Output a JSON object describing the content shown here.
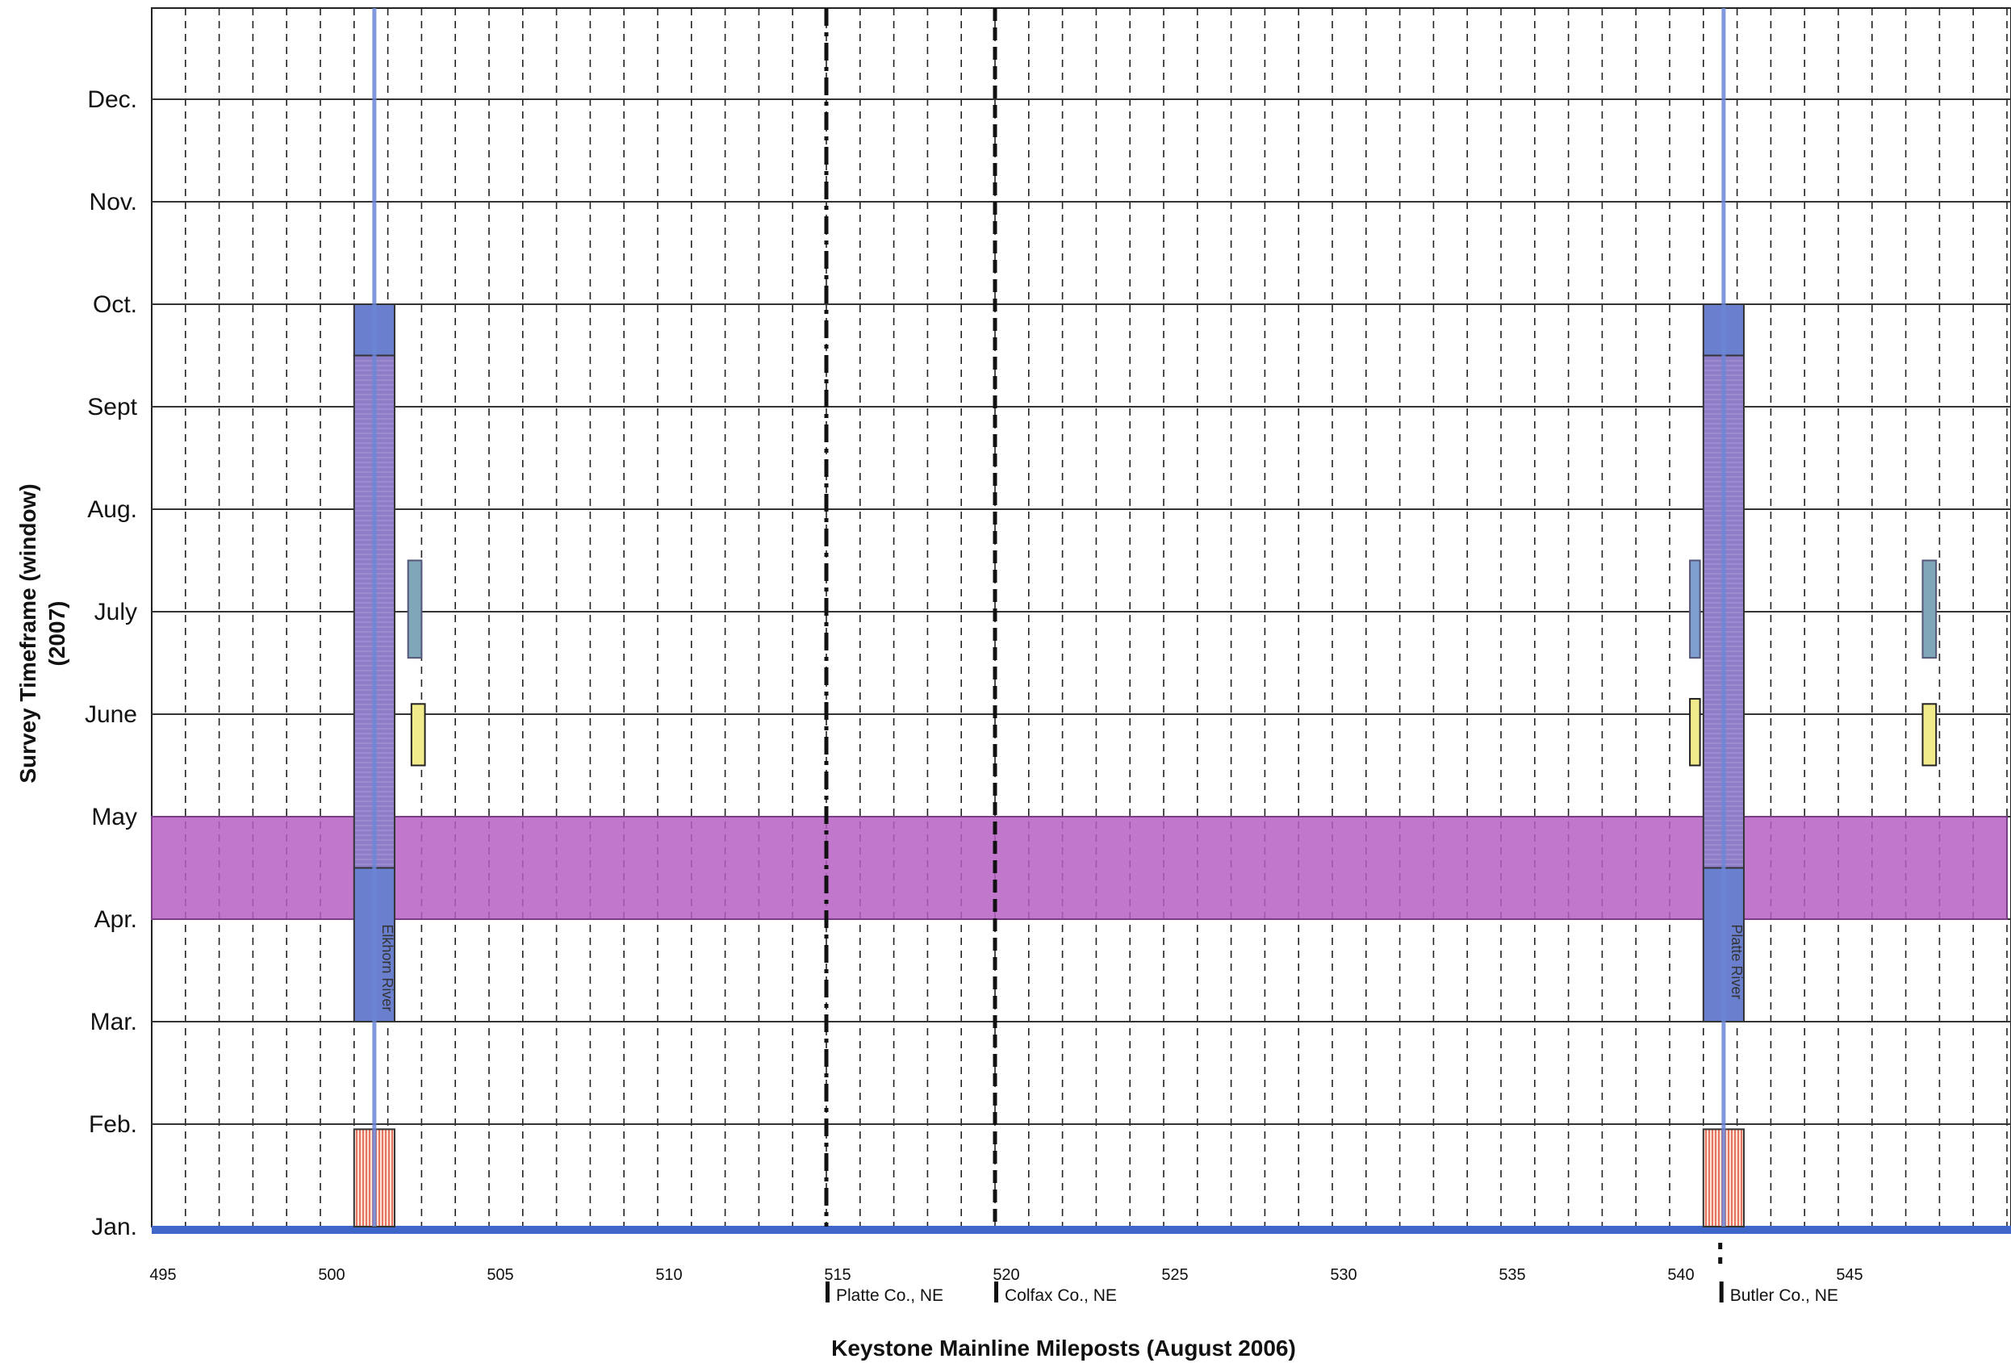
{
  "chart_data": {
    "type": "gantt",
    "ylabel": "Survey Timeframe (window)",
    "ylabel2": "(2007)",
    "xlabel": "Keystone Mainline Mileposts (August 2006)",
    "x_range": [
      495,
      550
    ],
    "x_ticks": [
      495,
      500,
      505,
      510,
      515,
      520,
      525,
      530,
      535,
      540,
      545
    ],
    "x_tick_labels": [
      "495",
      "500",
      "505",
      "510",
      "515",
      "520",
      "525",
      "530",
      "535",
      "540",
      "545"
    ],
    "months": [
      "Jan.",
      "Feb.",
      "Mar.",
      "Apr.",
      "May",
      "June",
      "July",
      "Aug.",
      "Sept",
      "Oct.",
      "Nov.",
      "Dec."
    ],
    "y_range_month": [
      1,
      12.9
    ],
    "minor_grid_step_mile": 1,
    "county_lines": [
      {
        "mile": 515,
        "label": "Platte Co., NE",
        "style": "dash-dot"
      },
      {
        "mile": 520,
        "label": "Colfax Co., NE",
        "style": "dash"
      },
      {
        "mile": 541.5,
        "label": "Butler Co., NE",
        "style": "dash"
      }
    ],
    "rivers": [
      {
        "mile": 501.6,
        "label": "Elkhorn River",
        "color": "#6b86d6"
      },
      {
        "mile": 541.6,
        "label": "Platte River",
        "color": "#6b86d6"
      }
    ],
    "bars": [
      {
        "x0": 495,
        "x1": 550,
        "y0": 4.0,
        "y1": 5.0,
        "fill": "#b65fc2",
        "stroke": "#7a3d88"
      },
      {
        "x0": 501.0,
        "x1": 502.2,
        "y0": 3.0,
        "y1": 4.5,
        "fill": "#6a80cf",
        "stroke": "#333"
      },
      {
        "x0": 501.0,
        "x1": 502.2,
        "y0": 4.5,
        "y1": 9.5,
        "fill": "#8e7ec8",
        "stroke": "#333",
        "pattern": "hatch"
      },
      {
        "x0": 501.0,
        "x1": 502.2,
        "y0": 9.5,
        "y1": 10.0,
        "fill": "#6a80cf",
        "stroke": "#333"
      },
      {
        "x0": 541.0,
        "x1": 542.2,
        "y0": 3.0,
        "y1": 4.5,
        "fill": "#6a80cf",
        "stroke": "#333"
      },
      {
        "x0": 541.0,
        "x1": 542.2,
        "y0": 4.5,
        "y1": 9.5,
        "fill": "#8e7ec8",
        "stroke": "#333",
        "pattern": "hatch"
      },
      {
        "x0": 541.0,
        "x1": 542.2,
        "y0": 9.5,
        "y1": 10.0,
        "fill": "#6a80cf",
        "stroke": "#333"
      },
      {
        "x0": 501.0,
        "x1": 502.2,
        "y0": 1.0,
        "y1": 1.95,
        "fill": "#f4b9a3",
        "stroke": "#333",
        "pattern": "stripe"
      },
      {
        "x0": 541.0,
        "x1": 542.2,
        "y0": 1.0,
        "y1": 1.95,
        "fill": "#f4b9a3",
        "stroke": "#333",
        "pattern": "stripe"
      },
      {
        "x0": 502.6,
        "x1": 503.0,
        "y0": 6.55,
        "y1": 7.5,
        "fill": "#7fa7b9",
        "stroke": "#557"
      },
      {
        "x0": 502.7,
        "x1": 503.1,
        "y0": 5.5,
        "y1": 6.1,
        "fill": "#f2eb8c",
        "stroke": "#222"
      },
      {
        "x0": 540.6,
        "x1": 540.9,
        "y0": 6.55,
        "y1": 7.5,
        "fill": "#7f9fd0",
        "stroke": "#557"
      },
      {
        "x0": 540.6,
        "x1": 540.9,
        "y0": 5.5,
        "y1": 6.15,
        "fill": "#f2eb8c",
        "stroke": "#222"
      },
      {
        "x0": 547.5,
        "x1": 547.9,
        "y0": 6.55,
        "y1": 7.5,
        "fill": "#7fa7b9",
        "stroke": "#557"
      },
      {
        "x0": 547.5,
        "x1": 547.9,
        "y0": 5.5,
        "y1": 6.1,
        "fill": "#f2eb8c",
        "stroke": "#222"
      }
    ]
  }
}
